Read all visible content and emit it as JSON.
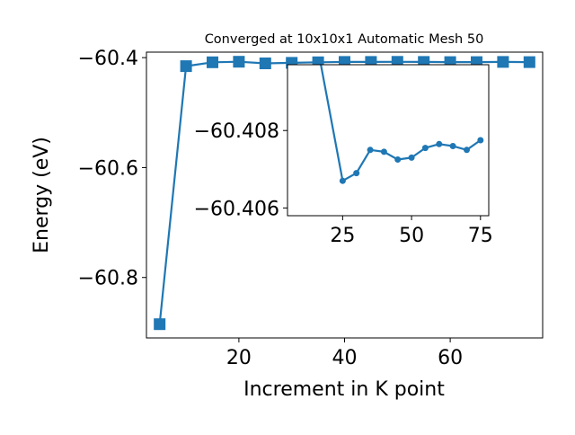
{
  "chart_data": [
    {
      "type": "line",
      "title": "Converged at 10x10x1 Automatic Mesh 50",
      "xlabel": "Increment in K point",
      "ylabel": "Energy (eV)",
      "xlim": [
        2.5,
        77.5
      ],
      "ylim": [
        -60.91,
        -60.39
      ],
      "xticks": [
        20,
        40,
        60
      ],
      "yticks": [
        -60.4,
        -60.6,
        -60.8
      ],
      "ytick_labels": [
        "−60.4",
        "−60.6",
        "−60.8"
      ],
      "grid": false,
      "marker": "square",
      "color": "#1f77b4",
      "series": [
        {
          "x": [
            5,
            10,
            15,
            20,
            25,
            30,
            35,
            40,
            45,
            50,
            55,
            60,
            65,
            70,
            75
          ],
          "values": [
            -60.885,
            -60.4155,
            -60.4085,
            -60.4075,
            -60.4105,
            -60.4095,
            -60.4085,
            -60.4078,
            -60.4078,
            -60.4076,
            -60.4078,
            -60.4081,
            -60.4081,
            -60.4078,
            -60.4081
          ]
        }
      ]
    },
    {
      "type": "line",
      "inset": true,
      "xlim": [
        5,
        78
      ],
      "ylim": [
        -60.4058,
        -60.4097
      ],
      "yaxis_inverted": true,
      "xticks": [
        25,
        50,
        75
      ],
      "yticks": [
        -60.408,
        -60.406
      ],
      "ytick_labels": [
        "−60.408",
        "−60.406"
      ],
      "grid": false,
      "marker": "circle",
      "color": "#1f77b4",
      "series": [
        {
          "x": [
            15,
            25,
            30,
            35,
            40,
            45,
            50,
            55,
            60,
            65,
            70,
            75
          ],
          "values": [
            -60.4105,
            -60.4067,
            -60.4069,
            -60.4075,
            -60.40745,
            -60.40725,
            -60.4073,
            -60.40755,
            -60.40765,
            -60.4076,
            -60.4075,
            -60.40775
          ]
        }
      ]
    }
  ]
}
